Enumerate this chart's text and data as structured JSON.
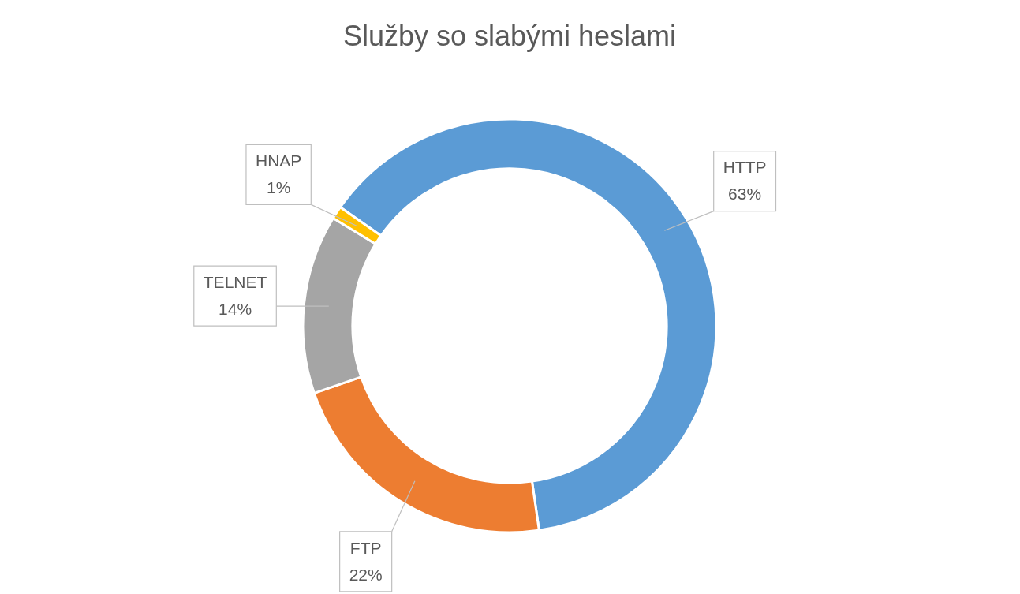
{
  "chart_data": {
    "type": "donut",
    "title": "Služby so slabými heslami",
    "categories": [
      "HTTP",
      "FTP",
      "TELNET",
      "HNAP"
    ],
    "values": [
      63,
      22,
      14,
      1
    ],
    "colors": [
      "#5b9bd5",
      "#ed7d31",
      "#a5a5a5",
      "#ffc000"
    ],
    "value_labels": [
      "63%",
      "22%",
      "14%",
      "1%"
    ],
    "legend": false
  }
}
